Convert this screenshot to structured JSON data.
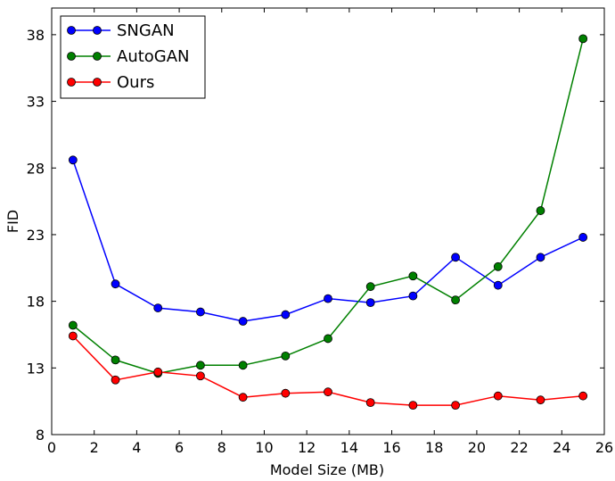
{
  "chart_data": {
    "type": "line",
    "title": "",
    "xlabel": "Model Size (MB)",
    "ylabel": "FID",
    "xlim": [
      0,
      26
    ],
    "ylim": [
      8,
      40
    ],
    "xticks": [
      0,
      2,
      4,
      6,
      8,
      10,
      12,
      14,
      16,
      18,
      20,
      22,
      24,
      26
    ],
    "yticks": [
      8,
      13,
      18,
      23,
      28,
      33,
      38
    ],
    "grid": false,
    "legend_position": "top-left",
    "x": [
      1,
      3,
      5,
      7,
      9,
      11,
      13,
      15,
      17,
      19,
      21,
      23,
      25
    ],
    "series": [
      {
        "name": "SNGAN",
        "color": "#0000ff",
        "values": [
          28.6,
          19.3,
          17.5,
          17.2,
          16.5,
          17.0,
          18.2,
          17.9,
          18.4,
          21.3,
          19.2,
          21.3,
          22.8
        ]
      },
      {
        "name": "AutoGAN",
        "color": "#008000",
        "values": [
          16.2,
          13.6,
          12.6,
          13.2,
          13.2,
          13.9,
          15.2,
          19.1,
          19.9,
          18.1,
          20.6,
          24.8,
          37.7
        ]
      },
      {
        "name": "Ours",
        "color": "#ff0000",
        "values": [
          15.4,
          12.1,
          12.7,
          12.4,
          10.8,
          11.1,
          11.2,
          10.4,
          10.2,
          10.2,
          10.9,
          10.6,
          10.9
        ]
      }
    ]
  }
}
